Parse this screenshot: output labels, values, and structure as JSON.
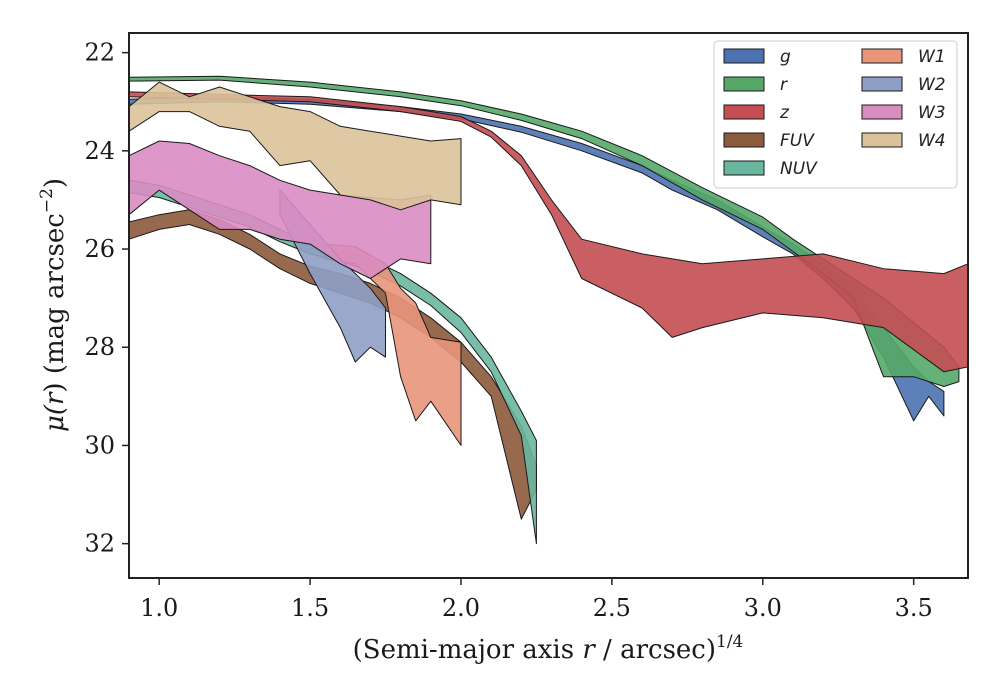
{
  "chart_data": {
    "type": "area",
    "title": "",
    "xlabel_prefix": "(Semi-major axis ",
    "xlabel_var": "r",
    "xlabel_suffix": " / arcsec)",
    "xlabel_exp": "1/4",
    "ylabel_prefix": "μ(",
    "ylabel_var": "r",
    "ylabel_mid": ") (mag arcsec",
    "ylabel_exp": "−2",
    "ylabel_end": ")",
    "xlim": [
      0.9,
      3.68
    ],
    "ylim": [
      32.7,
      21.6
    ],
    "y_inverted": true,
    "grid": false,
    "legend_position": "top-right",
    "legend_columns": 2,
    "xticks": [
      {
        "value": 1.0,
        "label": "1.0"
      },
      {
        "value": 1.5,
        "label": "1.5"
      },
      {
        "value": 2.0,
        "label": "2.0"
      },
      {
        "value": 2.5,
        "label": "2.5"
      },
      {
        "value": 3.0,
        "label": "3.0"
      },
      {
        "value": 3.5,
        "label": "3.5"
      }
    ],
    "yticks": [
      {
        "value": 22,
        "label": "22"
      },
      {
        "value": 24,
        "label": "24"
      },
      {
        "value": 26,
        "label": "26"
      },
      {
        "value": 28,
        "label": "28"
      },
      {
        "value": 30,
        "label": "30"
      },
      {
        "value": 32,
        "label": "32"
      }
    ],
    "series": [
      {
        "name": "g",
        "color": "#4c72b0",
        "upper": [
          [
            0.9,
            22.95
          ],
          [
            1.2,
            22.9
          ],
          [
            1.5,
            22.95
          ],
          [
            1.8,
            23.1
          ],
          [
            2.0,
            23.25
          ],
          [
            2.2,
            23.5
          ],
          [
            2.4,
            23.85
          ],
          [
            2.6,
            24.3
          ],
          [
            2.7,
            24.6
          ],
          [
            2.85,
            25.0
          ],
          [
            3.0,
            25.55
          ],
          [
            3.1,
            25.9
          ],
          [
            3.2,
            26.3
          ],
          [
            3.3,
            26.8
          ],
          [
            3.4,
            27.6
          ],
          [
            3.5,
            28.4
          ],
          [
            3.55,
            28.7
          ],
          [
            3.6,
            28.9
          ]
        ],
        "lower": [
          [
            0.9,
            23.05
          ],
          [
            1.2,
            23.0
          ],
          [
            1.5,
            23.05
          ],
          [
            1.8,
            23.2
          ],
          [
            2.0,
            23.35
          ],
          [
            2.2,
            23.62
          ],
          [
            2.4,
            24.0
          ],
          [
            2.6,
            24.45
          ],
          [
            2.7,
            24.8
          ],
          [
            2.85,
            25.2
          ],
          [
            3.0,
            25.75
          ],
          [
            3.1,
            26.1
          ],
          [
            3.2,
            26.6
          ],
          [
            3.3,
            27.2
          ],
          [
            3.4,
            28.2
          ],
          [
            3.5,
            29.5
          ],
          [
            3.55,
            29.0
          ],
          [
            3.6,
            29.4
          ]
        ]
      },
      {
        "name": "r",
        "color": "#55a868",
        "upper": [
          [
            0.9,
            22.5
          ],
          [
            1.2,
            22.48
          ],
          [
            1.5,
            22.6
          ],
          [
            1.8,
            22.8
          ],
          [
            2.0,
            22.98
          ],
          [
            2.2,
            23.25
          ],
          [
            2.4,
            23.6
          ],
          [
            2.6,
            24.1
          ],
          [
            2.8,
            24.75
          ],
          [
            3.0,
            25.35
          ],
          [
            3.1,
            25.8
          ],
          [
            3.2,
            26.2
          ],
          [
            3.3,
            26.6
          ],
          [
            3.4,
            27.0
          ],
          [
            3.5,
            27.5
          ],
          [
            3.6,
            28.0
          ],
          [
            3.65,
            28.4
          ]
        ],
        "lower": [
          [
            0.9,
            22.58
          ],
          [
            1.2,
            22.56
          ],
          [
            1.5,
            22.7
          ],
          [
            1.8,
            22.9
          ],
          [
            2.0,
            23.08
          ],
          [
            2.2,
            23.38
          ],
          [
            2.4,
            23.75
          ],
          [
            2.6,
            24.3
          ],
          [
            2.8,
            25.0
          ],
          [
            3.0,
            25.6
          ],
          [
            3.1,
            26.05
          ],
          [
            3.2,
            26.5
          ],
          [
            3.3,
            27.0
          ],
          [
            3.4,
            28.6
          ],
          [
            3.5,
            28.6
          ],
          [
            3.6,
            28.8
          ],
          [
            3.65,
            28.7
          ]
        ]
      },
      {
        "name": "z",
        "color": "#c44e52",
        "upper": [
          [
            0.9,
            22.8
          ],
          [
            1.2,
            22.85
          ],
          [
            1.5,
            22.9
          ],
          [
            1.8,
            23.1
          ],
          [
            2.0,
            23.3
          ],
          [
            2.1,
            23.6
          ],
          [
            2.2,
            24.1
          ],
          [
            2.3,
            25.0
          ],
          [
            2.4,
            25.8
          ],
          [
            2.6,
            26.1
          ],
          [
            2.8,
            26.3
          ],
          [
            3.0,
            26.2
          ],
          [
            3.2,
            26.1
          ],
          [
            3.4,
            26.4
          ],
          [
            3.6,
            26.5
          ],
          [
            3.68,
            26.3
          ]
        ],
        "lower": [
          [
            0.9,
            22.9
          ],
          [
            1.2,
            22.95
          ],
          [
            1.5,
            23.0
          ],
          [
            1.8,
            23.2
          ],
          [
            2.0,
            23.4
          ],
          [
            2.1,
            23.72
          ],
          [
            2.2,
            24.3
          ],
          [
            2.3,
            25.3
          ],
          [
            2.4,
            26.6
          ],
          [
            2.6,
            27.2
          ],
          [
            2.7,
            27.8
          ],
          [
            2.8,
            27.6
          ],
          [
            3.0,
            27.3
          ],
          [
            3.2,
            27.4
          ],
          [
            3.4,
            27.6
          ],
          [
            3.6,
            28.5
          ],
          [
            3.68,
            28.4
          ]
        ]
      },
      {
        "name": "FUV",
        "color": "#8c5a3c",
        "upper": [
          [
            0.9,
            25.45
          ],
          [
            1.0,
            25.3
          ],
          [
            1.1,
            25.2
          ],
          [
            1.2,
            25.4
          ],
          [
            1.3,
            25.7
          ],
          [
            1.4,
            26.1
          ],
          [
            1.5,
            26.35
          ],
          [
            1.6,
            26.5
          ],
          [
            1.7,
            26.7
          ],
          [
            1.8,
            27.0
          ],
          [
            1.9,
            27.4
          ],
          [
            2.0,
            27.9
          ],
          [
            2.1,
            28.6
          ],
          [
            2.2,
            29.6
          ],
          [
            2.25,
            30.4
          ]
        ],
        "lower": [
          [
            0.9,
            25.8
          ],
          [
            1.0,
            25.6
          ],
          [
            1.1,
            25.5
          ],
          [
            1.2,
            25.7
          ],
          [
            1.3,
            26.0
          ],
          [
            1.4,
            26.4
          ],
          [
            1.5,
            26.7
          ],
          [
            1.6,
            26.9
          ],
          [
            1.7,
            27.1
          ],
          [
            1.8,
            27.4
          ],
          [
            1.9,
            27.8
          ],
          [
            2.0,
            28.3
          ],
          [
            2.1,
            29.0
          ],
          [
            2.2,
            31.5
          ],
          [
            2.25,
            30.9
          ]
        ]
      },
      {
        "name": "NUV",
        "color": "#6ab7a0",
        "upper": [
          [
            0.9,
            24.6
          ],
          [
            1.0,
            24.7
          ],
          [
            1.1,
            24.9
          ],
          [
            1.2,
            25.1
          ],
          [
            1.3,
            25.3
          ],
          [
            1.4,
            25.6
          ],
          [
            1.5,
            25.9
          ],
          [
            1.6,
            26.0
          ],
          [
            1.7,
            26.2
          ],
          [
            1.8,
            26.5
          ],
          [
            1.9,
            26.9
          ],
          [
            2.0,
            27.4
          ],
          [
            2.1,
            28.2
          ],
          [
            2.2,
            29.3
          ],
          [
            2.25,
            29.9
          ]
        ],
        "lower": [
          [
            0.9,
            24.85
          ],
          [
            1.0,
            24.95
          ],
          [
            1.1,
            25.15
          ],
          [
            1.2,
            25.35
          ],
          [
            1.3,
            25.55
          ],
          [
            1.4,
            25.85
          ],
          [
            1.5,
            26.1
          ],
          [
            1.6,
            26.25
          ],
          [
            1.7,
            26.45
          ],
          [
            1.8,
            26.75
          ],
          [
            1.9,
            27.15
          ],
          [
            2.0,
            27.7
          ],
          [
            2.1,
            28.5
          ],
          [
            2.2,
            29.8
          ],
          [
            2.25,
            32.0
          ]
        ]
      },
      {
        "name": "W1",
        "color": "#e8957a",
        "upper": [
          [
            1.55,
            25.9
          ],
          [
            1.65,
            25.95
          ],
          [
            1.75,
            26.3
          ],
          [
            1.8,
            26.8
          ],
          [
            1.85,
            27.1
          ],
          [
            1.9,
            27.8
          ],
          [
            2.0,
            27.9
          ]
        ],
        "lower": [
          [
            1.55,
            26.2
          ],
          [
            1.65,
            26.3
          ],
          [
            1.75,
            26.9
          ],
          [
            1.8,
            28.6
          ],
          [
            1.85,
            29.5
          ],
          [
            1.9,
            29.1
          ],
          [
            2.0,
            30.0
          ]
        ]
      },
      {
        "name": "W2",
        "color": "#8e9ec5",
        "upper": [
          [
            1.4,
            24.8
          ],
          [
            1.5,
            25.5
          ],
          [
            1.6,
            26.2
          ],
          [
            1.7,
            26.8
          ],
          [
            1.75,
            27.2
          ]
        ],
        "lower": [
          [
            1.4,
            25.3
          ],
          [
            1.5,
            26.5
          ],
          [
            1.6,
            27.6
          ],
          [
            1.65,
            28.3
          ],
          [
            1.7,
            28.0
          ],
          [
            1.75,
            28.2
          ]
        ]
      },
      {
        "name": "W3",
        "color": "#d98cc2",
        "upper": [
          [
            0.9,
            24.1
          ],
          [
            1.0,
            23.8
          ],
          [
            1.1,
            23.85
          ],
          [
            1.2,
            24.1
          ],
          [
            1.3,
            24.3
          ],
          [
            1.4,
            24.6
          ],
          [
            1.5,
            24.8
          ],
          [
            1.6,
            24.9
          ],
          [
            1.7,
            24.95
          ],
          [
            1.8,
            25.0
          ],
          [
            1.9,
            24.9
          ]
        ],
        "lower": [
          [
            0.9,
            25.3
          ],
          [
            1.0,
            24.8
          ],
          [
            1.1,
            25.2
          ],
          [
            1.2,
            25.6
          ],
          [
            1.3,
            25.6
          ],
          [
            1.4,
            25.8
          ],
          [
            1.5,
            25.9
          ],
          [
            1.6,
            26.3
          ],
          [
            1.7,
            26.6
          ],
          [
            1.8,
            26.2
          ],
          [
            1.9,
            26.3
          ]
        ]
      },
      {
        "name": "W4",
        "color": "#dcc29a",
        "upper": [
          [
            0.9,
            23.1
          ],
          [
            1.0,
            22.6
          ],
          [
            1.1,
            22.9
          ],
          [
            1.2,
            22.7
          ],
          [
            1.3,
            22.9
          ],
          [
            1.4,
            23.1
          ],
          [
            1.5,
            23.2
          ],
          [
            1.6,
            23.5
          ],
          [
            1.7,
            23.6
          ],
          [
            1.8,
            23.7
          ],
          [
            1.9,
            23.8
          ],
          [
            2.0,
            23.75
          ]
        ],
        "lower": [
          [
            0.9,
            23.6
          ],
          [
            1.0,
            23.2
          ],
          [
            1.1,
            23.2
          ],
          [
            1.2,
            23.5
          ],
          [
            1.3,
            23.6
          ],
          [
            1.4,
            24.3
          ],
          [
            1.5,
            24.2
          ],
          [
            1.6,
            24.9
          ],
          [
            1.7,
            25.0
          ],
          [
            1.8,
            25.2
          ],
          [
            1.9,
            25.0
          ],
          [
            2.0,
            25.1
          ]
        ]
      }
    ],
    "legend": [
      {
        "label": "g",
        "color": "#4c72b0"
      },
      {
        "label": "r",
        "color": "#55a868"
      },
      {
        "label": "z",
        "color": "#c44e52"
      },
      {
        "label": "FUV",
        "color": "#8c5a3c"
      },
      {
        "label": "NUV",
        "color": "#6ab7a0"
      },
      {
        "label": "W1",
        "color": "#e8957a"
      },
      {
        "label": "W2",
        "color": "#8e9ec5"
      },
      {
        "label": "W3",
        "color": "#d98cc2"
      },
      {
        "label": "W4",
        "color": "#dcc29a"
      }
    ]
  }
}
